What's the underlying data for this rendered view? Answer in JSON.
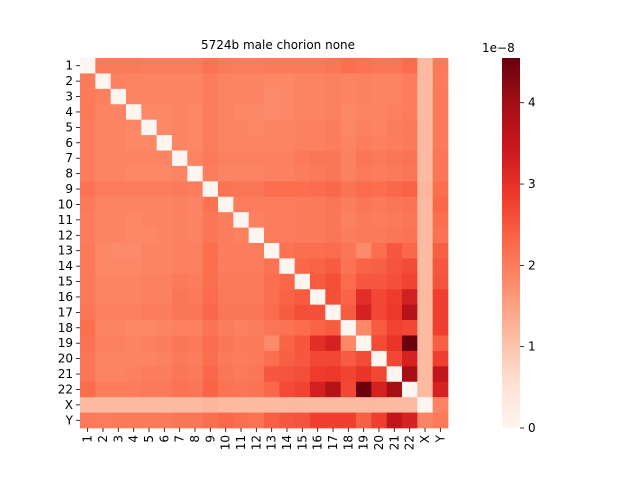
{
  "chart_data": {
    "type": "heatmap",
    "title": "5724b male chorion none",
    "xlabel": "",
    "ylabel": "",
    "categories": [
      "1",
      "2",
      "3",
      "4",
      "5",
      "6",
      "7",
      "8",
      "9",
      "10",
      "11",
      "12",
      "13",
      "14",
      "15",
      "16",
      "17",
      "18",
      "19",
      "20",
      "21",
      "22",
      "X",
      "Y"
    ],
    "values": [
      [
        0.0,
        2.05,
        2.05,
        2.05,
        2.0,
        2.0,
        2.0,
        2.0,
        2.15,
        2.05,
        2.0,
        2.0,
        2.05,
        2.05,
        2.05,
        2.05,
        2.1,
        2.2,
        2.15,
        2.1,
        2.1,
        2.25,
        1.15,
        2.05
      ],
      [
        2.05,
        0.0,
        1.95,
        1.9,
        1.9,
        1.9,
        1.9,
        1.9,
        2.0,
        1.9,
        1.9,
        1.9,
        1.85,
        1.85,
        1.9,
        1.9,
        1.95,
        1.9,
        1.95,
        1.9,
        1.9,
        2.0,
        1.15,
        2.0
      ],
      [
        2.05,
        1.95,
        0.0,
        1.9,
        1.9,
        1.9,
        1.9,
        1.9,
        2.0,
        1.9,
        1.9,
        1.9,
        1.8,
        1.85,
        1.9,
        1.9,
        1.95,
        1.9,
        1.95,
        1.9,
        1.9,
        2.0,
        1.15,
        2.05
      ],
      [
        2.05,
        1.9,
        1.9,
        0.0,
        1.85,
        1.85,
        1.9,
        1.85,
        2.0,
        1.9,
        1.85,
        1.85,
        1.8,
        1.85,
        1.9,
        1.9,
        1.95,
        1.85,
        1.9,
        1.9,
        1.95,
        2.0,
        1.15,
        2.05
      ],
      [
        2.0,
        1.9,
        1.9,
        1.85,
        0.0,
        1.85,
        1.9,
        1.85,
        2.0,
        1.9,
        1.9,
        1.85,
        1.9,
        1.9,
        1.95,
        1.95,
        2.0,
        1.85,
        1.95,
        1.9,
        2.0,
        2.05,
        1.15,
        2.05
      ],
      [
        2.0,
        1.9,
        1.9,
        1.85,
        1.85,
        0.0,
        1.9,
        1.85,
        2.0,
        1.9,
        1.9,
        1.9,
        1.9,
        1.9,
        1.95,
        1.95,
        2.0,
        1.9,
        2.0,
        1.95,
        2.0,
        2.05,
        1.15,
        2.05
      ],
      [
        2.0,
        1.9,
        1.9,
        1.9,
        1.9,
        1.9,
        0.0,
        1.9,
        2.05,
        1.95,
        1.95,
        1.95,
        1.95,
        1.95,
        2.05,
        2.1,
        2.1,
        1.95,
        2.1,
        2.05,
        2.1,
        2.15,
        1.15,
        2.1
      ],
      [
        2.0,
        1.9,
        1.9,
        1.85,
        1.85,
        1.85,
        1.9,
        0.0,
        2.0,
        1.9,
        1.9,
        1.9,
        1.95,
        1.95,
        2.0,
        2.05,
        2.1,
        1.95,
        2.05,
        2.0,
        2.05,
        2.1,
        1.15,
        2.1
      ],
      [
        2.15,
        2.0,
        2.0,
        2.0,
        2.0,
        2.0,
        2.05,
        2.0,
        0.0,
        2.15,
        2.1,
        2.1,
        2.2,
        2.2,
        2.2,
        2.25,
        2.3,
        2.15,
        2.25,
        2.2,
        2.3,
        2.35,
        1.2,
        2.2
      ],
      [
        2.05,
        1.9,
        1.9,
        1.9,
        1.9,
        1.9,
        1.95,
        1.9,
        2.15,
        0.0,
        2.0,
        2.0,
        2.0,
        2.0,
        2.05,
        2.05,
        2.1,
        2.0,
        2.1,
        2.05,
        2.1,
        2.15,
        1.15,
        2.3
      ],
      [
        2.0,
        1.9,
        1.9,
        1.85,
        1.9,
        1.9,
        1.95,
        1.9,
        2.1,
        2.0,
        0.0,
        1.95,
        2.0,
        2.0,
        2.05,
        2.05,
        2.1,
        1.95,
        2.05,
        2.0,
        2.05,
        2.1,
        1.15,
        2.2
      ],
      [
        2.0,
        1.9,
        1.9,
        1.85,
        1.85,
        1.9,
        1.95,
        1.9,
        2.1,
        2.0,
        1.95,
        0.0,
        2.0,
        2.0,
        2.05,
        2.05,
        2.1,
        2.0,
        2.05,
        2.05,
        2.1,
        2.15,
        1.15,
        2.15
      ],
      [
        2.05,
        1.85,
        1.8,
        1.8,
        1.9,
        1.9,
        1.95,
        1.95,
        2.2,
        2.0,
        2.0,
        2.0,
        0.0,
        2.15,
        2.2,
        2.2,
        2.25,
        2.1,
        1.8,
        2.2,
        2.5,
        2.3,
        1.15,
        2.4
      ],
      [
        2.05,
        1.85,
        1.85,
        1.85,
        1.9,
        1.9,
        1.95,
        1.95,
        2.2,
        2.0,
        2.0,
        2.0,
        2.15,
        0.0,
        2.3,
        2.35,
        2.45,
        2.15,
        2.35,
        2.4,
        2.55,
        2.65,
        1.15,
        2.5
      ],
      [
        2.05,
        1.9,
        1.9,
        1.9,
        1.95,
        1.95,
        2.05,
        2.0,
        2.2,
        2.05,
        2.05,
        2.05,
        2.2,
        2.3,
        0.0,
        2.45,
        2.6,
        2.25,
        2.5,
        2.5,
        2.6,
        2.75,
        1.15,
        2.55
      ],
      [
        2.05,
        1.9,
        1.9,
        1.9,
        1.95,
        1.95,
        2.1,
        2.05,
        2.25,
        2.05,
        2.05,
        2.05,
        2.2,
        2.35,
        2.45,
        0.0,
        2.6,
        2.35,
        3.05,
        2.7,
        2.85,
        3.3,
        1.15,
        2.8
      ],
      [
        2.1,
        1.95,
        1.95,
        1.95,
        2.0,
        2.0,
        2.1,
        2.1,
        2.3,
        2.1,
        2.1,
        2.1,
        2.25,
        2.45,
        2.6,
        2.6,
        0.0,
        2.45,
        3.25,
        2.7,
        2.9,
        3.75,
        1.15,
        2.8
      ],
      [
        2.2,
        1.9,
        1.9,
        1.85,
        1.85,
        1.9,
        1.95,
        1.95,
        2.15,
        2.0,
        1.95,
        2.0,
        2.1,
        2.15,
        2.25,
        2.35,
        2.45,
        0.0,
        1.85,
        2.45,
        2.75,
        2.7,
        1.15,
        2.8
      ],
      [
        2.15,
        1.95,
        1.95,
        1.9,
        1.95,
        2.0,
        2.1,
        2.05,
        2.25,
        2.1,
        2.05,
        2.05,
        1.8,
        2.35,
        2.5,
        3.05,
        3.25,
        1.85,
        0.0,
        2.65,
        2.95,
        4.5,
        1.15,
        2.4
      ],
      [
        2.1,
        1.9,
        1.9,
        1.9,
        1.9,
        1.95,
        2.05,
        2.0,
        2.2,
        2.05,
        2.0,
        2.05,
        2.2,
        2.4,
        2.5,
        2.7,
        2.7,
        2.45,
        2.65,
        0.0,
        2.7,
        3.25,
        1.15,
        2.8
      ],
      [
        2.1,
        1.9,
        1.9,
        1.95,
        2.0,
        2.0,
        2.1,
        2.05,
        2.3,
        2.1,
        2.05,
        2.1,
        2.5,
        2.55,
        2.6,
        2.85,
        2.9,
        2.75,
        2.95,
        2.7,
        0.0,
        3.95,
        1.15,
        3.55
      ],
      [
        2.25,
        2.0,
        2.0,
        2.0,
        2.05,
        2.05,
        2.15,
        2.1,
        2.35,
        2.15,
        2.1,
        2.15,
        2.3,
        2.65,
        2.75,
        3.3,
        3.75,
        2.7,
        4.5,
        3.25,
        3.95,
        0.0,
        1.15,
        3.25
      ],
      [
        1.15,
        1.15,
        1.15,
        1.15,
        1.15,
        1.15,
        1.15,
        1.15,
        1.2,
        1.15,
        1.15,
        1.15,
        1.15,
        1.15,
        1.15,
        1.15,
        1.15,
        1.15,
        1.15,
        1.15,
        1.15,
        1.15,
        0.0,
        1.9
      ],
      [
        2.05,
        2.0,
        2.05,
        2.05,
        2.05,
        2.05,
        2.1,
        2.1,
        2.2,
        2.3,
        2.2,
        2.15,
        2.4,
        2.5,
        2.55,
        2.8,
        2.8,
        2.8,
        2.4,
        2.8,
        3.55,
        3.25,
        1.9,
        2.05
      ]
    ],
    "colorbar": {
      "scale_label": "1e−8",
      "ticks": [
        0,
        1,
        2,
        3,
        4
      ],
      "range": [
        0,
        4.55
      ],
      "colormap": "Reds"
    },
    "grid": false,
    "legend": "colorbar-right"
  }
}
